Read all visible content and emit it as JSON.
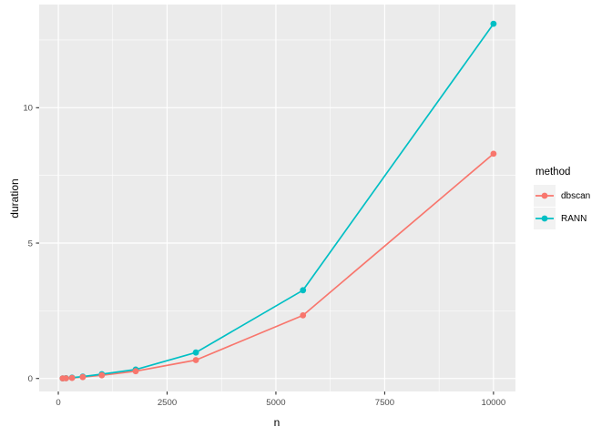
{
  "figure": {
    "background": "#FFFFFF",
    "panel_bg": "#EBEBEB",
    "grid_color": "#FFFFFF",
    "tick_mark_color": "#333333",
    "axis_text_color": "#4D4D4D",
    "title_color": "#000000"
  },
  "legend": {
    "title": "method",
    "key_bg": "#F2F2F2",
    "items": [
      {
        "label": "dbscan",
        "color": "#F8766D"
      },
      {
        "label": "RANN",
        "color": "#00BFC4"
      }
    ]
  },
  "chart_data": {
    "type": "line",
    "title": "",
    "xlabel": "n",
    "ylabel": "duration",
    "x": [
      100,
      178,
      316,
      562,
      1000,
      1778,
      3162,
      5623,
      10000
    ],
    "series": [
      {
        "name": "dbscan",
        "color": "#F8766D",
        "values": [
          0.003,
          0.008,
          0.02,
          0.05,
          0.12,
          0.27,
          0.68,
          2.33,
          8.3
        ]
      },
      {
        "name": "RANN",
        "color": "#00BFC4",
        "values": [
          0.005,
          0.01,
          0.03,
          0.07,
          0.16,
          0.33,
          0.96,
          3.26,
          13.1
        ]
      }
    ],
    "x_ticks": [
      0,
      2500,
      5000,
      7500,
      10000
    ],
    "y_ticks": [
      0,
      5,
      10
    ],
    "x_minor": [
      1250,
      3750,
      6250,
      8750
    ],
    "y_minor": [
      2.5,
      7.5,
      12.5
    ],
    "xlim": [
      -440,
      10505
    ],
    "ylim": [
      -0.48,
      13.81
    ],
    "grid": true,
    "legend_position": "right",
    "legend_title": "method"
  }
}
